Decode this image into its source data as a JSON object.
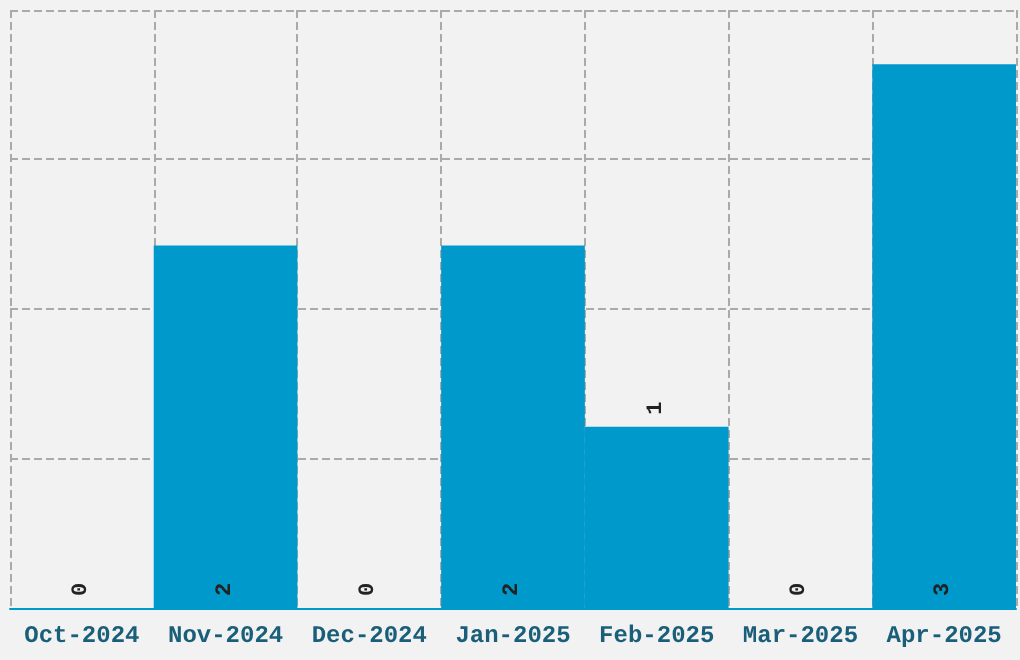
{
  "chart_data": {
    "type": "bar",
    "categories": [
      "Oct-2024",
      "Nov-2024",
      "Dec-2024",
      "Jan-2025",
      "Feb-2025",
      "Mar-2025",
      "Apr-2025"
    ],
    "values": [
      0,
      2,
      0,
      2,
      1,
      0,
      3
    ],
    "color": "#0099cc",
    "ylim": [
      0,
      3.3
    ],
    "yticks": [
      {
        "value": 0,
        "label": null
      },
      {
        "value": 0.825,
        "label": null
      },
      {
        "value": 1.65,
        "label": null
      },
      {
        "value": 2.475,
        "label": null
      },
      {
        "value": 3.3,
        "label": null
      }
    ],
    "tick_labels": "x",
    "grid": true,
    "data_labels": true
  }
}
